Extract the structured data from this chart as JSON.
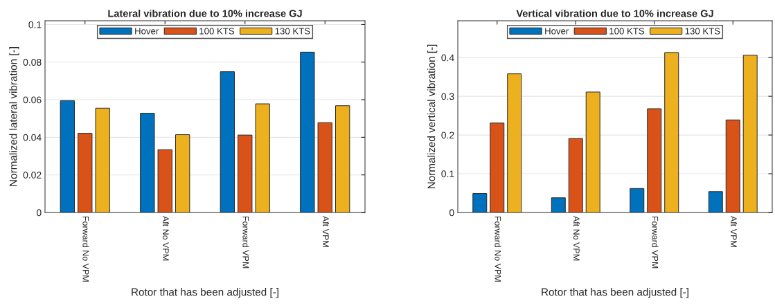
{
  "chart_data": [
    {
      "type": "bar",
      "title": "Lateral vibration due to 10% increase GJ",
      "xlabel": "Rotor that has been adjusted [-]",
      "ylabel": "Normalized lateral vibration [-]",
      "categories": [
        "Forward No VPM",
        "Aft No VPM",
        "Forward VPM",
        "Aft VPM"
      ],
      "series": [
        {
          "name": "Hover",
          "color": "#0072bd",
          "values": [
            0.0595,
            0.0528,
            0.0749,
            0.0853
          ]
        },
        {
          "name": "100 KTS",
          "color": "#d95319",
          "values": [
            0.0421,
            0.0334,
            0.0412,
            0.0478
          ]
        },
        {
          "name": "130 KTS",
          "color": "#edb120",
          "values": [
            0.0555,
            0.0414,
            0.0578,
            0.0568
          ]
        }
      ],
      "ylim": [
        0,
        0.102
      ],
      "yticks": [
        0,
        0.02,
        0.04,
        0.06,
        0.08,
        0.1
      ],
      "grid": "y",
      "legend": "top"
    },
    {
      "type": "bar",
      "title": "Vertical vibration due to 10% increase GJ",
      "xlabel": "Rotor that has been adjusted [-]",
      "ylabel": "Normalized vertical vibration [-]",
      "categories": [
        "Forward No VPM",
        "Aft No VPM",
        "Forward VPM",
        "Aft VPM"
      ],
      "series": [
        {
          "name": "Hover",
          "color": "#0072bd",
          "values": [
            0.049,
            0.038,
            0.062,
            0.054
          ]
        },
        {
          "name": "100 KTS",
          "color": "#d95319",
          "values": [
            0.231,
            0.191,
            0.268,
            0.239
          ]
        },
        {
          "name": "130 KTS",
          "color": "#edb120",
          "values": [
            0.358,
            0.311,
            0.413,
            0.406
          ]
        }
      ],
      "ylim": [
        0,
        0.495
      ],
      "yticks": [
        0,
        0.1,
        0.2,
        0.3,
        0.4
      ],
      "grid": "y",
      "legend": "top"
    }
  ]
}
